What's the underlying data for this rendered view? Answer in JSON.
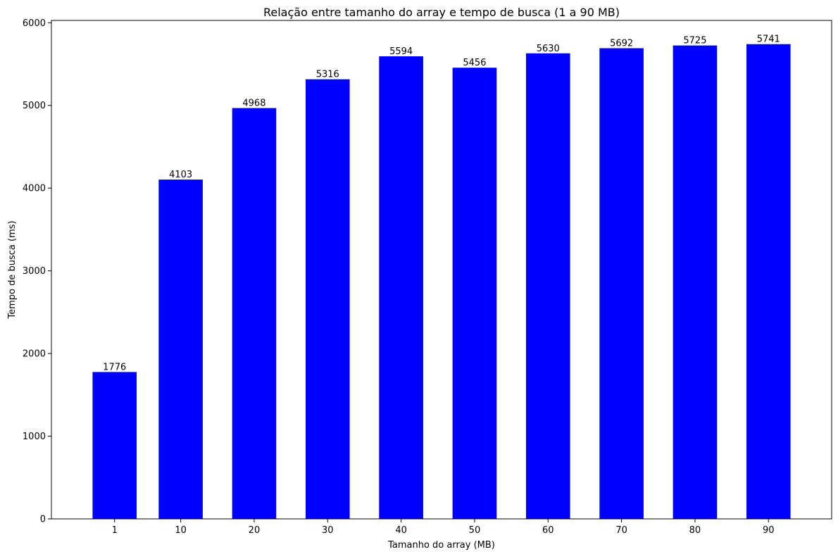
{
  "chart_data": {
    "type": "bar",
    "title": "Relação entre tamanho do array e tempo de busca (1 a 90 MB)",
    "xlabel": "Tamanho do array (MB)",
    "ylabel": "Tempo de busca (ms)",
    "x": [
      1,
      10,
      20,
      30,
      40,
      50,
      60,
      70,
      80,
      90
    ],
    "categories": [
      "1",
      "10",
      "20",
      "30",
      "40",
      "50",
      "60",
      "70",
      "80",
      "90"
    ],
    "values": [
      1776,
      4103,
      4968,
      5316,
      5594,
      5456,
      5630,
      5692,
      5725,
      5741
    ],
    "data_labels": [
      "1776",
      "4103",
      "4968",
      "5316",
      "5594",
      "5456",
      "5630",
      "5692",
      "5725",
      "5741"
    ],
    "xlim": [
      -7.6,
      98.6
    ],
    "ylim": [
      0,
      6028
    ],
    "y_ticks": [
      0,
      1000,
      2000,
      3000,
      4000,
      5000,
      6000
    ],
    "y_tick_labels": [
      "0",
      "1000",
      "2000",
      "3000",
      "4000",
      "5000",
      "6000"
    ],
    "bar_width": 6,
    "bar_color": "#0000ff",
    "grid": false,
    "legend": "none"
  }
}
